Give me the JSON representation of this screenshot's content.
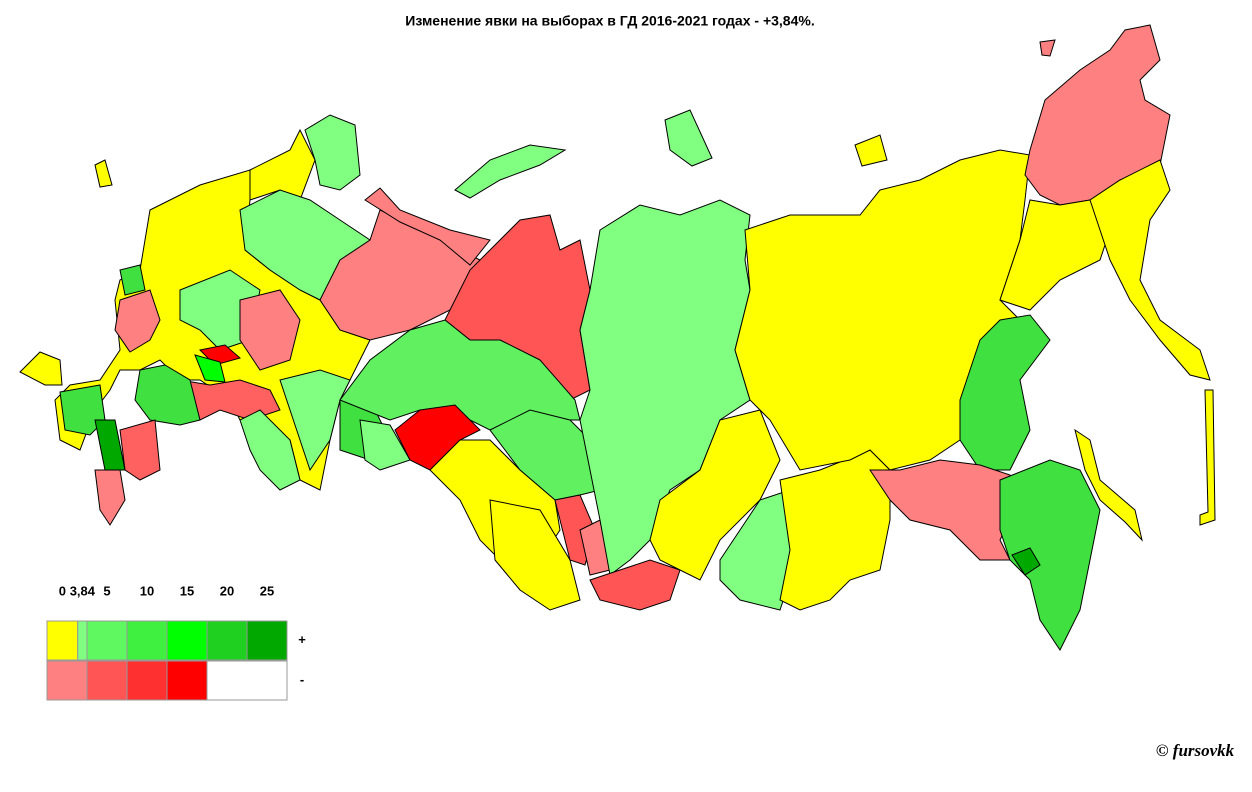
{
  "title": "Изменение явки на выборах в ГД 2016-2021 годах - +3,84%.",
  "legend": {
    "ticks": [
      0,
      {
        "value": 3.84,
        "label": "3,84"
      },
      5,
      10,
      15,
      20,
      25
    ],
    "rows": [
      {
        "sign": "+",
        "colors": [
          "#ffff00",
          "#80ff80",
          "#60f860",
          "#40f040",
          "#00ff00",
          "#20d020",
          "#00a800"
        ]
      },
      {
        "sign": "-",
        "colors": [
          "#ff8080",
          "#ff8080",
          "#ff5555",
          "#ff3030",
          "#ff0000",
          "#ffffff",
          "#ffffff"
        ]
      }
    ]
  },
  "credit": "© fursovkk"
}
